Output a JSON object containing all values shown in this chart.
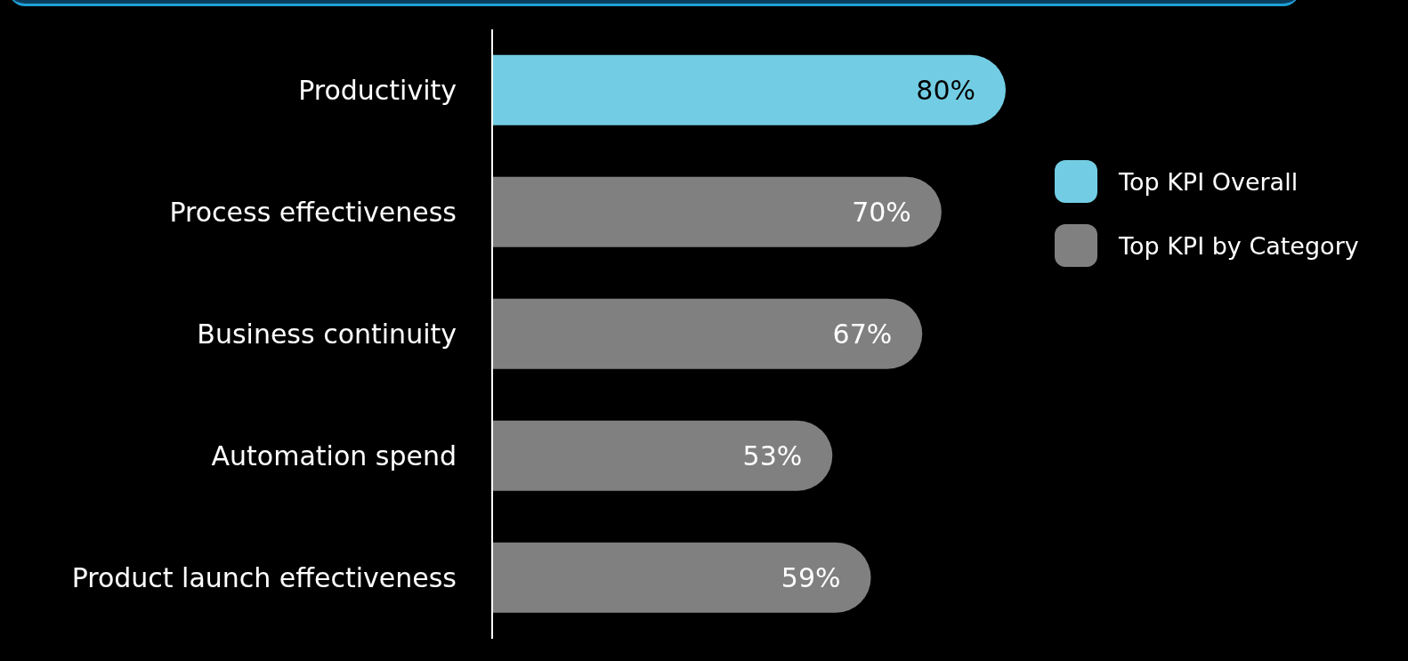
{
  "chart_data": {
    "type": "bar",
    "orientation": "horizontal",
    "stacked": true,
    "categories": [
      "Productivity",
      "Process effectiveness",
      "Business continuity",
      "Automation spend",
      "Product launch effectiveness"
    ],
    "series": [
      {
        "name": "Top KPI Overall",
        "color": "#72cde4",
        "values": [
          80,
          null,
          null,
          null,
          null
        ],
        "value_labels": [
          "80%",
          null,
          null,
          null,
          null
        ]
      },
      {
        "name": "Top KPI by Category",
        "color": "#808080",
        "values": [
          null,
          70,
          67,
          53,
          59
        ],
        "value_labels": [
          null,
          "70%",
          "67%",
          "53%",
          "59%"
        ]
      }
    ],
    "legend": "right"
  }
}
